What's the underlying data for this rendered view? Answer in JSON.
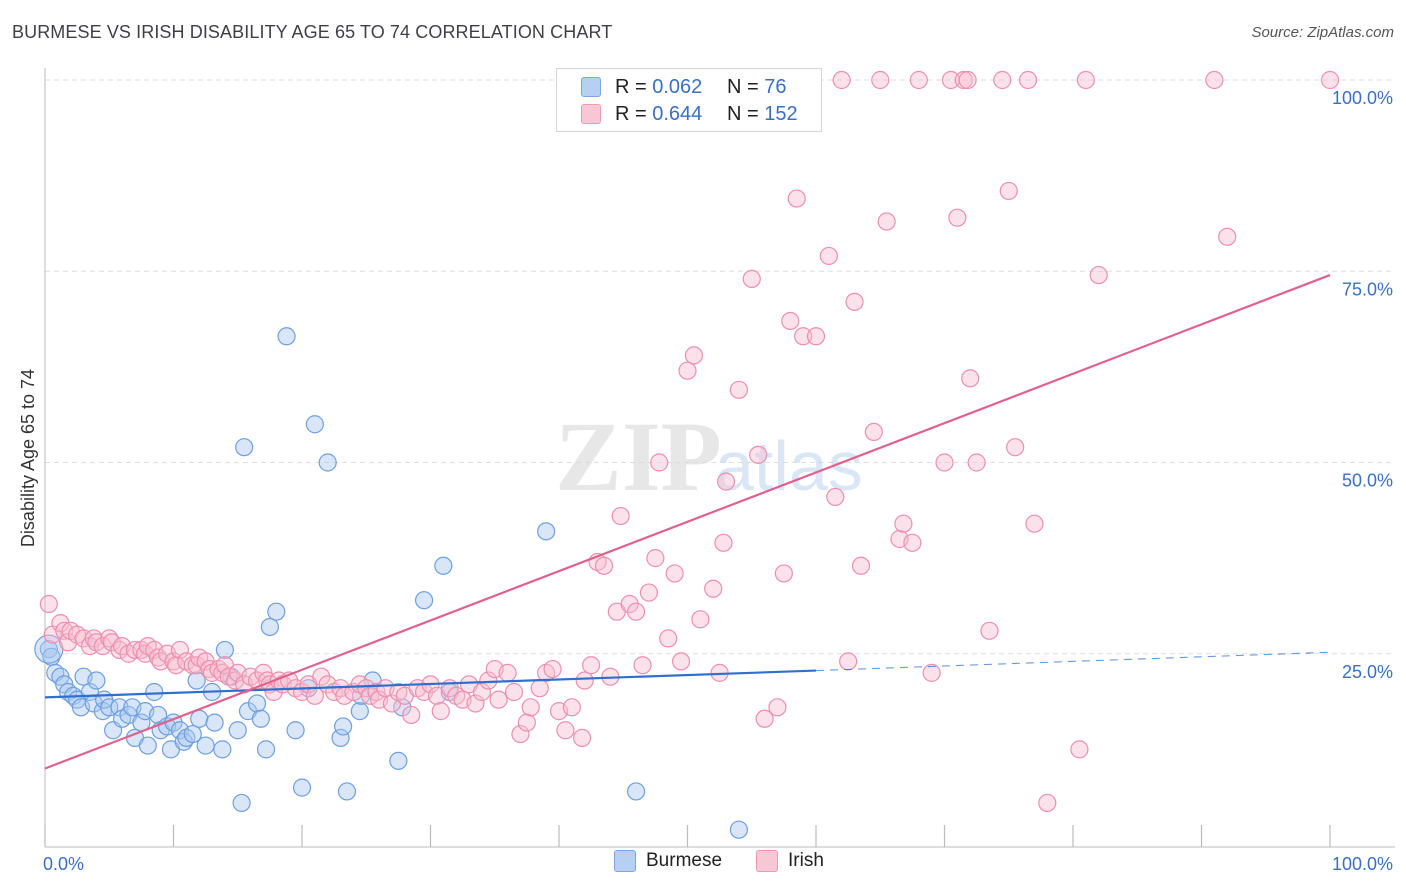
{
  "header": {
    "title": "BURMESE VS IRISH DISABILITY AGE 65 TO 74 CORRELATION CHART",
    "source": "Source: ZipAtlas.com"
  },
  "legend_top": {
    "burmese": {
      "r_label": "R = ",
      "r_value": "0.062",
      "n_label": "N = ",
      "n_value": "76"
    },
    "irish": {
      "r_label": "R = ",
      "r_value": "0.644",
      "n_label": "N = ",
      "n_value": "152"
    }
  },
  "legend_bottom": {
    "burmese": "Burmese",
    "irish": "Irish"
  },
  "colors": {
    "burmese_fill": "#a9c8f0",
    "burmese_stroke": "#6e9fe0",
    "burmese_line": "#2f6fd0",
    "irish_fill": "#f6bfd0",
    "irish_stroke": "#ec8fae",
    "irish_line": "#e0608e",
    "axis_label": "#3a6fc4"
  },
  "chart_data": {
    "type": "scatter",
    "xlabel": "",
    "ylabel": "Disability Age 65 to 74",
    "xlim": [
      0,
      100
    ],
    "ylim": [
      0,
      100
    ],
    "x_ticks": [
      "0.0%",
      "100.0%"
    ],
    "y_ticks": [
      "25.0%",
      "50.0%",
      "75.0%",
      "100.0%"
    ],
    "grid": "horizontal dashed",
    "watermark": "ZIPatlas",
    "series": [
      {
        "name": "Burmese",
        "R": 0.062,
        "N": 76,
        "trend": {
          "x": [
            0,
            60
          ],
          "y": [
            19.3,
            22.8
          ],
          "extended_dashed_to": [
            100,
            25.2
          ]
        },
        "points": [
          [
            0.3,
            25.6
          ],
          [
            0.5,
            24.6
          ],
          [
            0.8,
            22.5
          ],
          [
            1.2,
            22.0
          ],
          [
            1.5,
            21.0
          ],
          [
            1.8,
            20.0
          ],
          [
            2.2,
            19.5
          ],
          [
            2.5,
            19.0
          ],
          [
            2.8,
            18.0
          ],
          [
            3.0,
            22.0
          ],
          [
            3.5,
            20.0
          ],
          [
            3.8,
            18.5
          ],
          [
            4.0,
            21.5
          ],
          [
            4.5,
            17.5
          ],
          [
            4.6,
            19.0
          ],
          [
            5.0,
            18.0
          ],
          [
            5.3,
            15.0
          ],
          [
            5.8,
            18.0
          ],
          [
            6.0,
            16.5
          ],
          [
            6.5,
            17.0
          ],
          [
            6.8,
            18.0
          ],
          [
            7.0,
            14.0
          ],
          [
            7.5,
            16.0
          ],
          [
            7.8,
            17.5
          ],
          [
            8.0,
            13.0
          ],
          [
            8.5,
            20.0
          ],
          [
            8.8,
            17.0
          ],
          [
            9.0,
            15.0
          ],
          [
            9.5,
            15.5
          ],
          [
            9.8,
            12.5
          ],
          [
            10.0,
            16.0
          ],
          [
            10.5,
            15.0
          ],
          [
            10.8,
            13.5
          ],
          [
            11.0,
            14.0
          ],
          [
            11.5,
            14.5
          ],
          [
            11.8,
            21.5
          ],
          [
            12.0,
            16.5
          ],
          [
            12.5,
            13.0
          ],
          [
            13.0,
            20.0
          ],
          [
            13.2,
            16.0
          ],
          [
            13.8,
            12.5
          ],
          [
            14.0,
            25.5
          ],
          [
            14.5,
            22.0
          ],
          [
            15.0,
            15.0
          ],
          [
            15.3,
            5.5
          ],
          [
            15.5,
            52.0
          ],
          [
            15.8,
            17.5
          ],
          [
            16.5,
            18.5
          ],
          [
            16.8,
            16.5
          ],
          [
            17.2,
            12.5
          ],
          [
            17.5,
            28.5
          ],
          [
            18.0,
            30.5
          ],
          [
            18.8,
            66.5
          ],
          [
            19.5,
            15.0
          ],
          [
            20.0,
            7.5
          ],
          [
            20.5,
            20.5
          ],
          [
            21.0,
            55.0
          ],
          [
            22.0,
            50.0
          ],
          [
            23.0,
            14.0
          ],
          [
            23.2,
            15.5
          ],
          [
            23.5,
            7.0
          ],
          [
            24.5,
            17.5
          ],
          [
            24.6,
            19.5
          ],
          [
            25.5,
            21.5
          ],
          [
            27.5,
            11.0
          ],
          [
            27.8,
            18.0
          ],
          [
            29.5,
            32.0
          ],
          [
            31.0,
            36.5
          ],
          [
            31.5,
            20.0
          ],
          [
            39.0,
            41.0
          ],
          [
            46.0,
            7.0
          ],
          [
            54.0,
            2.0
          ]
        ]
      },
      {
        "name": "Irish",
        "R": 0.644,
        "N": 152,
        "trend": {
          "x": [
            0,
            100
          ],
          "y": [
            10.0,
            74.5
          ]
        },
        "points": [
          [
            0.3,
            31.5
          ],
          [
            0.6,
            27.5
          ],
          [
            1.2,
            29.0
          ],
          [
            1.5,
            28.0
          ],
          [
            1.8,
            26.5
          ],
          [
            2.0,
            28.0
          ],
          [
            2.5,
            27.5
          ],
          [
            3.0,
            27.0
          ],
          [
            3.5,
            26.0
          ],
          [
            3.8,
            27.0
          ],
          [
            4.0,
            26.5
          ],
          [
            4.5,
            26.0
          ],
          [
            5.0,
            27.0
          ],
          [
            5.2,
            26.5
          ],
          [
            5.8,
            25.5
          ],
          [
            6.0,
            26.0
          ],
          [
            6.5,
            25.0
          ],
          [
            7.0,
            25.5
          ],
          [
            7.5,
            25.5
          ],
          [
            7.8,
            25.0
          ],
          [
            8.0,
            26.0
          ],
          [
            8.5,
            25.5
          ],
          [
            8.8,
            24.5
          ],
          [
            9.0,
            24.0
          ],
          [
            9.5,
            25.0
          ],
          [
            10.0,
            24.0
          ],
          [
            10.2,
            23.5
          ],
          [
            10.5,
            25.5
          ],
          [
            11.0,
            24.0
          ],
          [
            11.5,
            23.5
          ],
          [
            11.8,
            23.5
          ],
          [
            12.0,
            24.5
          ],
          [
            12.5,
            24.0
          ],
          [
            12.8,
            23.0
          ],
          [
            13.0,
            22.5
          ],
          [
            13.5,
            23.0
          ],
          [
            13.8,
            22.5
          ],
          [
            14.0,
            23.5
          ],
          [
            14.3,
            22.0
          ],
          [
            14.8,
            21.5
          ],
          [
            15.0,
            22.5
          ],
          [
            15.5,
            21.0
          ],
          [
            16.0,
            22.0
          ],
          [
            16.5,
            21.5
          ],
          [
            17.0,
            22.5
          ],
          [
            17.3,
            21.5
          ],
          [
            17.5,
            21.0
          ],
          [
            17.8,
            20.0
          ],
          [
            18.2,
            21.5
          ],
          [
            18.5,
            21.0
          ],
          [
            19.0,
            21.5
          ],
          [
            19.5,
            20.5
          ],
          [
            20.0,
            20.0
          ],
          [
            20.5,
            21.0
          ],
          [
            21.0,
            19.5
          ],
          [
            21.5,
            22.0
          ],
          [
            22.0,
            21.0
          ],
          [
            22.5,
            20.0
          ],
          [
            23.0,
            20.5
          ],
          [
            23.3,
            19.5
          ],
          [
            24.0,
            20.0
          ],
          [
            24.5,
            21.0
          ],
          [
            25.0,
            20.5
          ],
          [
            25.3,
            19.5
          ],
          [
            25.8,
            20.0
          ],
          [
            26.0,
            19.0
          ],
          [
            26.5,
            20.5
          ],
          [
            27.0,
            18.5
          ],
          [
            27.5,
            20.0
          ],
          [
            28.0,
            19.5
          ],
          [
            28.5,
            17.0
          ],
          [
            29.0,
            20.5
          ],
          [
            29.5,
            20.0
          ],
          [
            30.0,
            21.0
          ],
          [
            30.5,
            19.5
          ],
          [
            30.8,
            17.5
          ],
          [
            31.5,
            20.5
          ],
          [
            32.0,
            19.5
          ],
          [
            32.5,
            19.0
          ],
          [
            33.0,
            21.0
          ],
          [
            33.5,
            18.5
          ],
          [
            34.0,
            20.0
          ],
          [
            34.5,
            21.5
          ],
          [
            35.0,
            23.0
          ],
          [
            35.3,
            19.0
          ],
          [
            36.0,
            22.5
          ],
          [
            36.5,
            20.0
          ],
          [
            37.0,
            14.5
          ],
          [
            37.5,
            16.0
          ],
          [
            37.8,
            18.0
          ],
          [
            38.5,
            20.5
          ],
          [
            39.0,
            22.5
          ],
          [
            39.5,
            23.0
          ],
          [
            40.0,
            17.5
          ],
          [
            40.5,
            15.0
          ],
          [
            41.0,
            18.0
          ],
          [
            41.8,
            14.0
          ],
          [
            42.0,
            21.5
          ],
          [
            42.5,
            23.5
          ],
          [
            43.0,
            37.0
          ],
          [
            43.5,
            36.5
          ],
          [
            44.0,
            22.0
          ],
          [
            44.5,
            30.5
          ],
          [
            44.8,
            43.0
          ],
          [
            45.5,
            31.5
          ],
          [
            46.0,
            30.5
          ],
          [
            46.5,
            23.5
          ],
          [
            47.0,
            33.0
          ],
          [
            47.5,
            37.5
          ],
          [
            47.8,
            50.0
          ],
          [
            48.5,
            27.0
          ],
          [
            49.0,
            35.5
          ],
          [
            49.5,
            24.0
          ],
          [
            50.0,
            62.0
          ],
          [
            50.5,
            64.0
          ],
          [
            51.0,
            29.5
          ],
          [
            52.0,
            33.5
          ],
          [
            52.5,
            22.5
          ],
          [
            52.8,
            39.5
          ],
          [
            53.0,
            47.5
          ],
          [
            54.0,
            59.5
          ],
          [
            55.0,
            74.0
          ],
          [
            55.5,
            51.0
          ],
          [
            56.0,
            16.5
          ],
          [
            57.0,
            18.0
          ],
          [
            57.5,
            35.5
          ],
          [
            58.0,
            68.5
          ],
          [
            58.5,
            84.5
          ],
          [
            59.0,
            66.5
          ],
          [
            60.0,
            66.5
          ],
          [
            61.0,
            77.0
          ],
          [
            61.5,
            45.5
          ],
          [
            62.0,
            100.0
          ],
          [
            62.5,
            24.0
          ],
          [
            63.0,
            71.0
          ],
          [
            63.5,
            36.5
          ],
          [
            64.5,
            54.0
          ],
          [
            65.0,
            100.0
          ],
          [
            65.5,
            81.5
          ],
          [
            66.5,
            40.0
          ],
          [
            66.8,
            42.0
          ],
          [
            67.5,
            39.5
          ],
          [
            68.0,
            100.0
          ],
          [
            69.0,
            22.5
          ],
          [
            70.0,
            50.0
          ],
          [
            70.5,
            100.0
          ],
          [
            71.0,
            82.0
          ],
          [
            71.5,
            100.0
          ],
          [
            71.8,
            100.0
          ],
          [
            72.0,
            61.0
          ],
          [
            72.5,
            50.0
          ],
          [
            73.5,
            28.0
          ],
          [
            74.5,
            100.0
          ],
          [
            75.0,
            85.5
          ],
          [
            75.5,
            52.0
          ],
          [
            76.5,
            100.0
          ],
          [
            77.0,
            42.0
          ],
          [
            78.0,
            5.5
          ],
          [
            80.5,
            12.5
          ],
          [
            81.0,
            100.0
          ],
          [
            82.0,
            74.5
          ],
          [
            91.0,
            100.0
          ],
          [
            92.0,
            79.5
          ],
          [
            100.0,
            100.0
          ]
        ]
      }
    ]
  }
}
